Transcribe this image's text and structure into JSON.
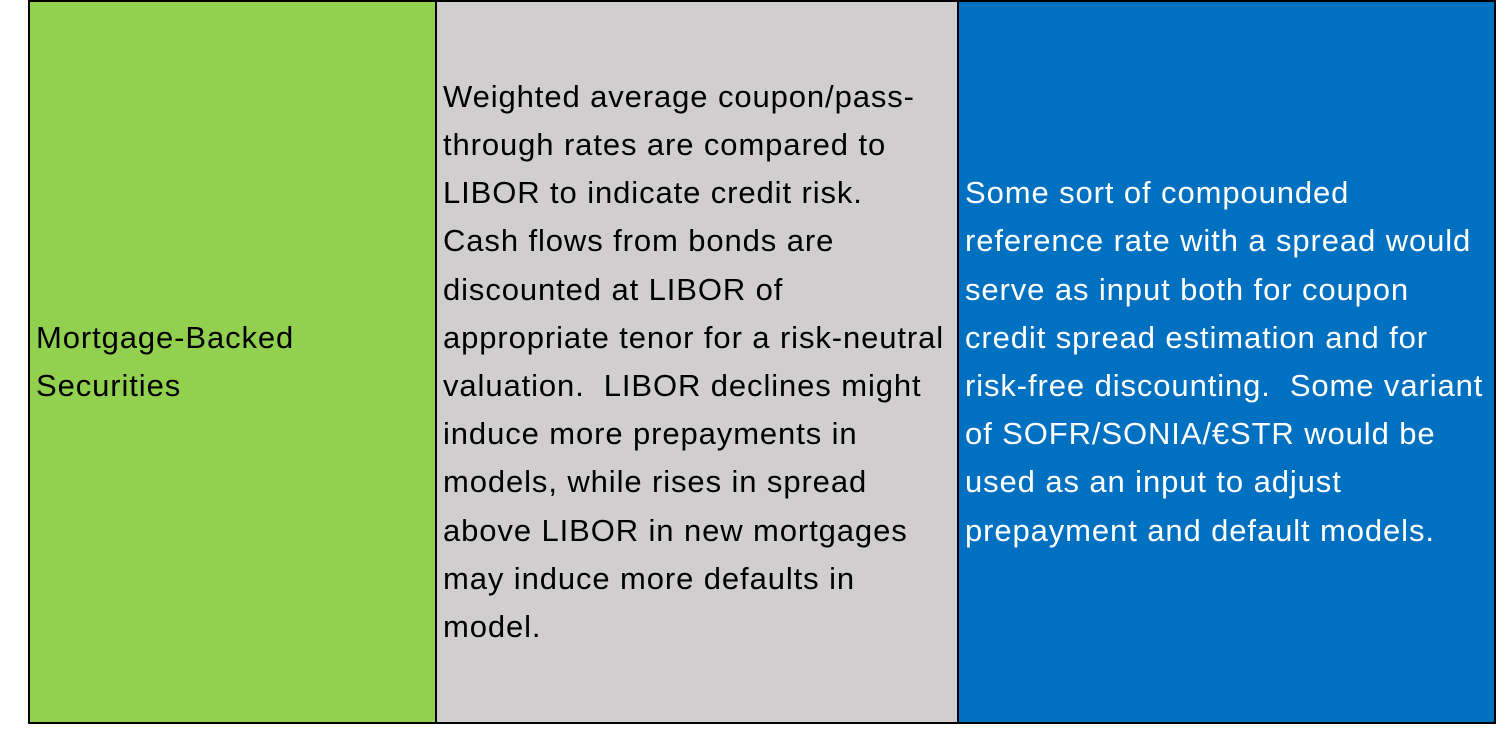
{
  "table": {
    "rows": [
      [
        "Mortgage-Backed Securities",
        "Weighted average coupon/pass-through rates are compared to LIBOR to indicate credit risk.  Cash flows from bonds are discounted at LIBOR of appropriate tenor for a risk-neutral valuation.  LIBOR declines might induce more prepayments in models, while rises in spread above LIBOR in new mortgages may induce more defaults in model.",
        "Some sort of compounded reference rate with a spread would serve as input both for coupon credit spread estimation and for risk-free discounting.  Some variant of SOFR/SONIA/€STR would be used as an input to adjust prepayment and default models."
      ]
    ]
  }
}
